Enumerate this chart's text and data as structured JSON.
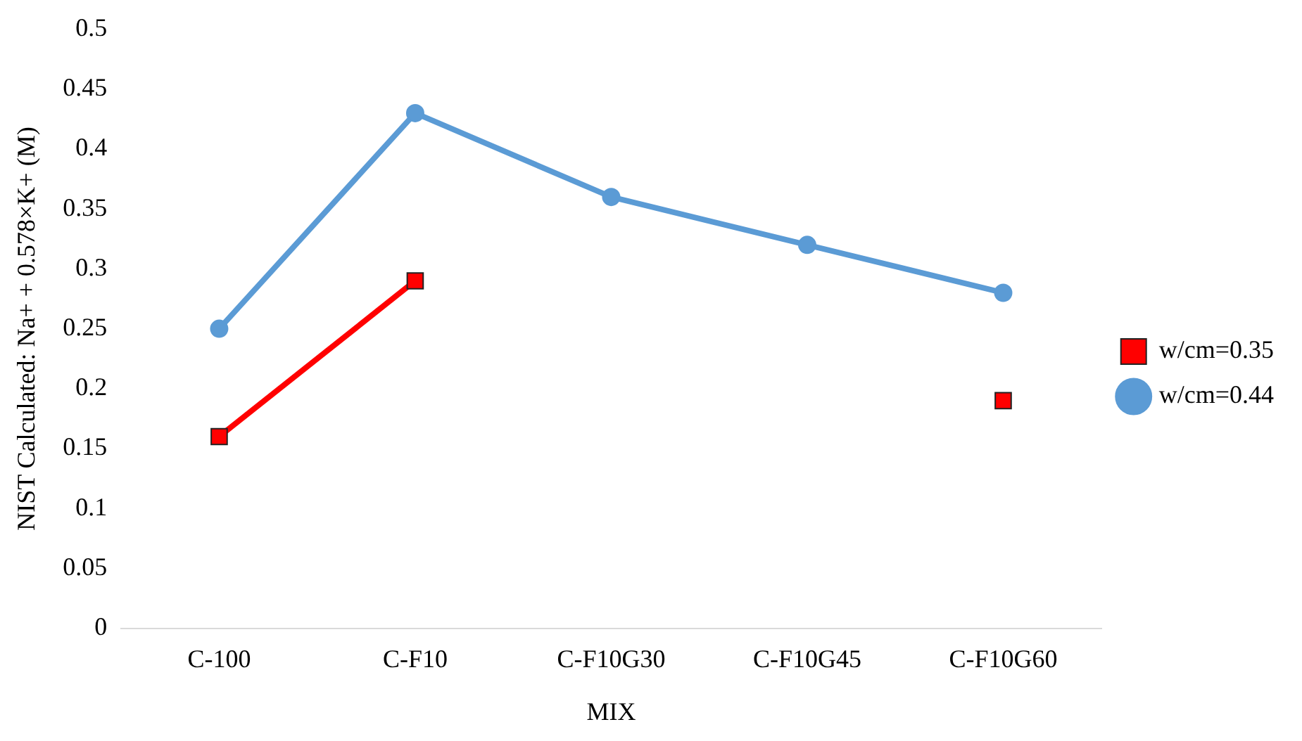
{
  "chart_data": {
    "type": "line",
    "xlabel": "MIX",
    "ylabel": "NIST Calculated: Na+ + 0.578×K+ (M)",
    "categories": [
      "C-100",
      "C-F10",
      "C-F10G30",
      "C-F10G45",
      "C-F10G60"
    ],
    "series": [
      {
        "name": "w/cm=0.35",
        "color": "#ff0000",
        "marker": "square",
        "values": [
          0.16,
          0.29,
          null,
          null,
          0.19
        ]
      },
      {
        "name": "w/cm=0.44",
        "color": "#5b9bd5",
        "marker": "circle",
        "values": [
          0.25,
          0.43,
          0.36,
          0.32,
          0.28
        ]
      }
    ],
    "ylim": [
      0,
      0.5
    ],
    "yticks": [
      0,
      0.05,
      0.1,
      0.15,
      0.2,
      0.25,
      0.3,
      0.35,
      0.4,
      0.45,
      0.5
    ],
    "grid": false,
    "legend": "right",
    "line_style": "solid"
  }
}
